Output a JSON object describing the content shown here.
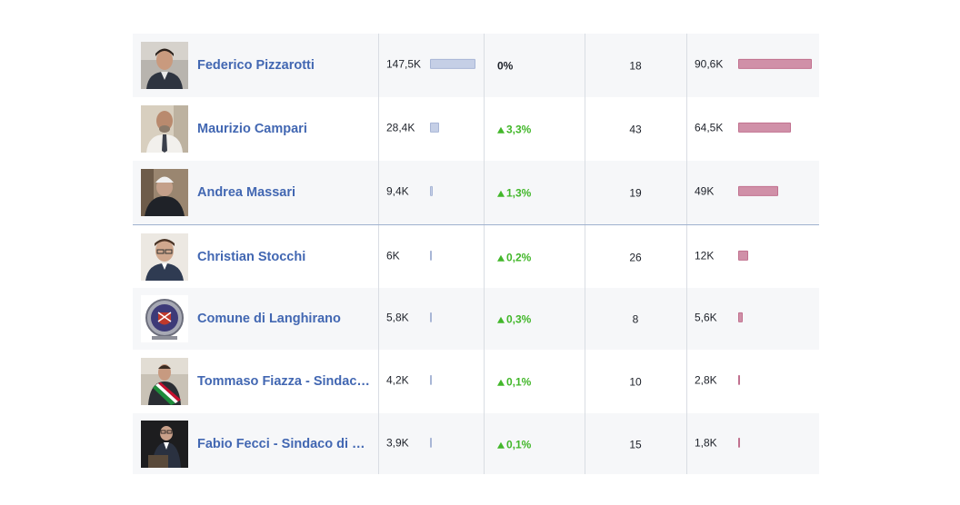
{
  "rows": [
    {
      "name": "Federico Pizzarotti",
      "likes": "147,5K",
      "likes_fraction": 1.0,
      "growth": "0%",
      "growth_up": false,
      "count": "18",
      "engagement": "90,6K",
      "engagement_fraction": 1.0
    },
    {
      "name": "Maurizio Campari",
      "likes": "28,4K",
      "likes_fraction": 0.19,
      "growth": "3,3%",
      "growth_up": true,
      "count": "43",
      "engagement": "64,5K",
      "engagement_fraction": 0.71
    },
    {
      "name": "Andrea Massari",
      "likes": "9,4K",
      "likes_fraction": 0.06,
      "growth": "1,3%",
      "growth_up": true,
      "count": "19",
      "engagement": "49K",
      "engagement_fraction": 0.54
    },
    {
      "name": "Christian Stocchi",
      "likes": "6K",
      "likes_fraction": 0.04,
      "growth": "0,2%",
      "growth_up": true,
      "count": "26",
      "engagement": "12K",
      "engagement_fraction": 0.13
    },
    {
      "name": "Comune di Langhirano",
      "likes": "5,8K",
      "likes_fraction": 0.04,
      "growth": "0,3%",
      "growth_up": true,
      "count": "8",
      "engagement": "5,6K",
      "engagement_fraction": 0.06
    },
    {
      "name": "Tommaso Fiazza - Sindaco di Collecchio",
      "likes": "4,2K",
      "likes_fraction": 0.03,
      "growth": "0,1%",
      "growth_up": true,
      "count": "10",
      "engagement": "2,8K",
      "engagement_fraction": 0.03
    },
    {
      "name": "Fabio Fecci - Sindaco di Noceto",
      "likes": "3,9K",
      "likes_fraction": 0.03,
      "growth": "0,1%",
      "growth_up": true,
      "count": "15",
      "engagement": "1,8K",
      "engagement_fraction": 0.02
    }
  ],
  "colors": {
    "name": "#4267b2",
    "growth": "#42b72a",
    "likes_bar": "#c5cfe6",
    "engagement_bar": "#d090a8"
  },
  "icons": {
    "growth_up": "triangle-up-icon"
  }
}
